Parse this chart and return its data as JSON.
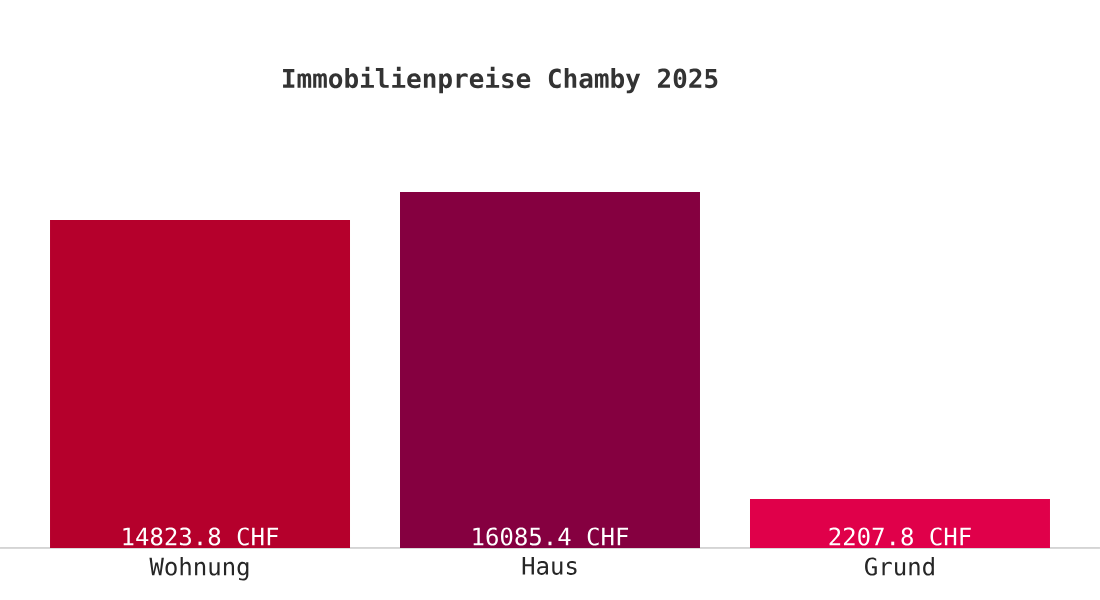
{
  "chart_data": {
    "type": "bar",
    "title": "Immobilienpreise Chamby 2025",
    "categories": [
      "Wohnung",
      "Haus",
      "Grund"
    ],
    "values": [
      14823.8,
      16085.4,
      2207.8
    ],
    "colors": [
      "#b5002c",
      "#850040",
      "#e0004a"
    ],
    "value_labels": [
      "14823.8 CHF",
      "16085.4 CHF",
      "2207.8 CHF"
    ]
  }
}
